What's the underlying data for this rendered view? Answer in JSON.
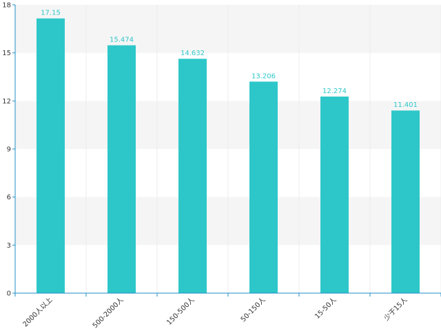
{
  "chart_data": {
    "type": "bar",
    "title": "",
    "xlabel": "",
    "ylabel": "",
    "categories": [
      "2000人以上",
      "500-2000人",
      "150-500人",
      "50-150人",
      "15-50人",
      "少于15人"
    ],
    "values": [
      17.15,
      15.474,
      14.632,
      13.206,
      12.274,
      11.401
    ],
    "data_labels": [
      "17.15",
      "15.474",
      "14.632",
      "13.206",
      "12.274",
      "11.401"
    ],
    "ylim": [
      0,
      18
    ],
    "yticks": [
      0,
      3,
      6,
      9,
      12,
      15,
      18
    ],
    "ytick_labels": [
      "0",
      "3",
      "6",
      "9",
      "12",
      "15",
      "18"
    ],
    "grid": true,
    "colors": {
      "bar": "#2ec7c9",
      "axis": "#1f8ec4",
      "band_alt": "#f5f5f5",
      "label": "#2ec7c9"
    }
  }
}
